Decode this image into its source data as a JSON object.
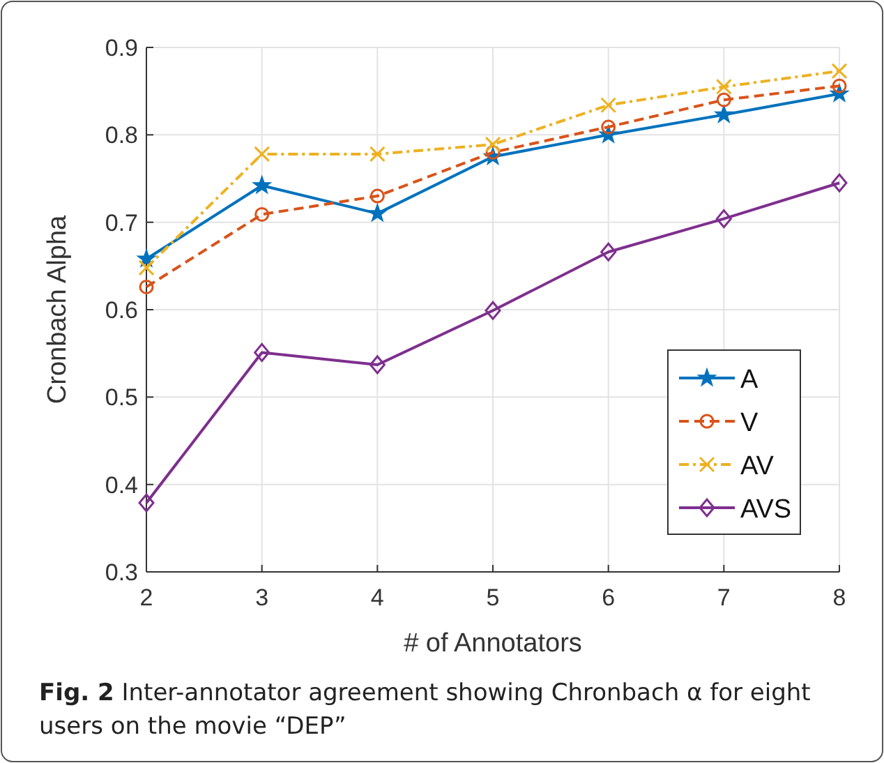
{
  "chart_data": {
    "type": "line",
    "xlabel": "# of Annotators",
    "ylabel": "Cronbach Alpha",
    "x": [
      2,
      3,
      4,
      5,
      6,
      7,
      8
    ],
    "series": [
      {
        "name": "A",
        "color": "#0072bd",
        "marker": "star",
        "line_style": "solid",
        "values": [
          0.658,
          0.742,
          0.71,
          0.775,
          0.8,
          0.823,
          0.847
        ]
      },
      {
        "name": "V",
        "color": "#d95319",
        "marker": "circle",
        "line_style": "dashed",
        "values": [
          0.626,
          0.709,
          0.73,
          0.78,
          0.809,
          0.84,
          0.856
        ]
      },
      {
        "name": "AV",
        "color": "#edb120",
        "marker": "cross",
        "line_style": "dashdot",
        "values": [
          0.648,
          0.778,
          0.778,
          0.789,
          0.834,
          0.855,
          0.873
        ]
      },
      {
        "name": "AVS",
        "color": "#7e2f8e",
        "marker": "diamond",
        "line_style": "solid",
        "values": [
          0.379,
          0.551,
          0.537,
          0.599,
          0.666,
          0.704,
          0.745
        ]
      }
    ],
    "xlim": [
      2,
      8
    ],
    "xticks": [
      2,
      3,
      4,
      5,
      6,
      7,
      8
    ],
    "ylim": [
      0.3,
      0.9
    ],
    "yticks": [
      0.3,
      0.4,
      0.5,
      0.6,
      0.7,
      0.8,
      0.9
    ],
    "grid": true,
    "legend": "bottom right",
    "annotations": [
      "Fig. 2 Inter-annotator agreement showing Chronbach α for eight users on the movie “DEP”"
    ]
  }
}
